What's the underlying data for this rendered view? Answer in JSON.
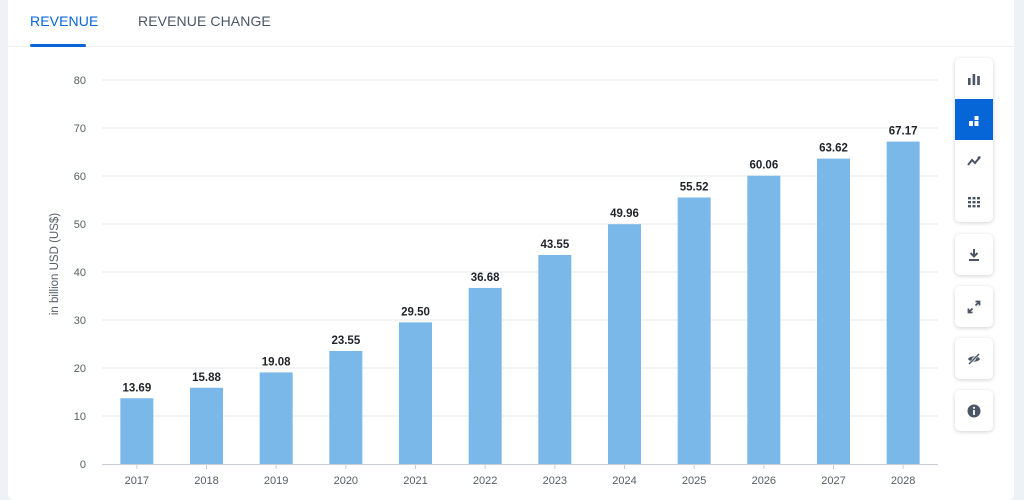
{
  "tabs": [
    {
      "label": "REVENUE",
      "active": true
    },
    {
      "label": "REVENUE CHANGE",
      "active": false
    }
  ],
  "toolbar": {
    "chart_types": [
      "bar-chart-icon",
      "stacked-bar-icon",
      "line-chart-icon",
      "table-icon"
    ],
    "active_chart_type": "stacked-bar-icon",
    "actions": [
      "download-icon",
      "fullscreen-icon",
      "hide-icon",
      "info-icon"
    ]
  },
  "colors": {
    "bar": "#7ab8ea",
    "accent": "#0666d8",
    "grid": "#e6e9ed"
  },
  "chart_data": {
    "type": "bar",
    "title": "",
    "xlabel": "",
    "ylabel": "in billion USD (US$)",
    "ylim": [
      0,
      80
    ],
    "yticks": [
      0,
      10,
      20,
      30,
      40,
      50,
      60,
      70,
      80
    ],
    "categories": [
      "2017",
      "2018",
      "2019",
      "2020",
      "2021",
      "2022",
      "2023",
      "2024",
      "2025",
      "2026",
      "2027",
      "2028"
    ],
    "values": [
      13.69,
      15.88,
      19.08,
      23.55,
      29.5,
      36.68,
      43.55,
      49.96,
      55.52,
      60.06,
      63.62,
      67.17
    ],
    "value_labels": [
      "13.69",
      "15.88",
      "19.08",
      "23.55",
      "29.50",
      "36.68",
      "43.55",
      "49.96",
      "55.52",
      "60.06",
      "63.62",
      "67.17"
    ],
    "grid": true
  }
}
